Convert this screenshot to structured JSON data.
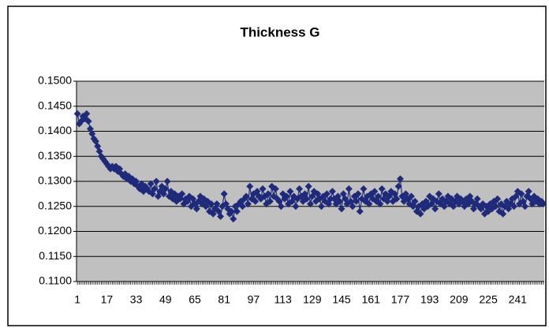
{
  "chart_data": {
    "type": "line",
    "title": "Thickness G",
    "x": [
      1,
      2,
      3,
      4,
      5,
      6,
      7,
      8,
      9,
      10,
      11,
      12,
      13,
      14,
      15,
      16,
      17,
      18,
      19,
      20,
      21,
      22,
      23,
      24,
      25,
      26,
      27,
      28,
      29,
      30,
      31,
      32,
      33,
      34,
      35,
      36,
      37,
      38,
      39,
      40,
      41,
      42,
      43,
      44,
      45,
      46,
      47,
      48,
      49,
      50,
      51,
      52,
      53,
      54,
      55,
      56,
      57,
      58,
      59,
      60,
      61,
      62,
      63,
      64,
      65,
      66,
      67,
      68,
      69,
      70,
      71,
      72,
      73,
      74,
      75,
      76,
      77,
      78,
      79,
      80,
      81,
      82,
      83,
      84,
      85,
      86,
      87,
      88,
      89,
      90,
      91,
      92,
      93,
      94,
      95,
      96,
      97,
      98,
      99,
      100,
      101,
      102,
      103,
      104,
      105,
      106,
      107,
      108,
      109,
      110,
      111,
      112,
      113,
      114,
      115,
      116,
      117,
      118,
      119,
      120,
      121,
      122,
      123,
      124,
      125,
      126,
      127,
      128,
      129,
      130,
      131,
      132,
      133,
      134,
      135,
      136,
      137,
      138,
      139,
      140,
      141,
      142,
      143,
      144,
      145,
      146,
      147,
      148,
      149,
      150,
      151,
      152,
      153,
      154,
      155,
      156,
      157,
      158,
      159,
      160,
      161,
      162,
      163,
      164,
      165,
      166,
      167,
      168,
      169,
      170,
      171,
      172,
      173,
      174,
      175,
      176,
      177,
      178,
      179,
      180,
      181,
      182,
      183,
      184,
      185,
      186,
      187,
      188,
      189,
      190,
      191,
      192,
      193,
      194,
      195,
      196,
      197,
      198,
      199,
      200,
      201,
      202,
      203,
      204,
      205,
      206,
      207,
      208,
      209,
      210,
      211,
      212,
      213,
      214,
      215,
      216,
      217,
      218,
      219,
      220,
      221,
      222,
      223,
      224,
      225,
      226,
      227,
      228,
      229,
      230,
      231,
      232,
      233,
      234,
      235,
      236,
      237,
      238,
      239,
      240,
      241,
      242,
      243,
      244,
      245,
      246,
      247,
      248,
      249,
      250,
      251,
      252,
      253,
      254,
      255
    ],
    "series": [
      {
        "color": "#1f2a7a",
        "values": [
          0.1435,
          0.1415,
          0.142,
          0.143,
          0.1425,
          0.1435,
          0.142,
          0.1405,
          0.1395,
          0.1385,
          0.138,
          0.137,
          0.136,
          0.135,
          0.1345,
          0.134,
          0.1335,
          0.133,
          0.1325,
          0.133,
          0.1325,
          0.133,
          0.132,
          0.1325,
          0.1315,
          0.131,
          0.1315,
          0.1305,
          0.131,
          0.13,
          0.1305,
          0.1295,
          0.13,
          0.129,
          0.1285,
          0.1295,
          0.128,
          0.129,
          0.1285,
          0.128,
          0.1295,
          0.1275,
          0.1285,
          0.13,
          0.127,
          0.128,
          0.129,
          0.1275,
          0.1285,
          0.13,
          0.127,
          0.128,
          0.1265,
          0.1275,
          0.126,
          0.127,
          0.1265,
          0.1275,
          0.1255,
          0.1265,
          0.126,
          0.127,
          0.125,
          0.1265,
          0.1255,
          0.1245,
          0.126,
          0.127,
          0.1255,
          0.1265,
          0.125,
          0.126,
          0.124,
          0.1255,
          0.1235,
          0.1245,
          0.1255,
          0.124,
          0.123,
          0.125,
          0.1275,
          0.1255,
          0.1245,
          0.1235,
          0.124,
          0.1225,
          0.125,
          0.124,
          0.1255,
          0.126,
          0.125,
          0.1265,
          0.127,
          0.1255,
          0.129,
          0.1265,
          0.1275,
          0.126,
          0.128,
          0.127,
          0.1265,
          0.1285,
          0.127,
          0.1255,
          0.1275,
          0.126,
          0.129,
          0.127,
          0.1285,
          0.1265,
          0.126,
          0.125,
          0.1275,
          0.1265,
          0.127,
          0.1255,
          0.128,
          0.126,
          0.127,
          0.125,
          0.1265,
          0.1285,
          0.127,
          0.126,
          0.1275,
          0.1265,
          0.129,
          0.1255,
          0.127,
          0.128,
          0.126,
          0.1275,
          0.1265,
          0.125,
          0.127,
          0.126,
          0.1275,
          0.1255,
          0.1265,
          0.128,
          0.1265,
          0.1255,
          0.127,
          0.126,
          0.1245,
          0.1275,
          0.1265,
          0.1255,
          0.1285,
          0.126,
          0.125,
          0.127,
          0.126,
          0.1275,
          0.124,
          0.1265,
          0.1285,
          0.126,
          0.127,
          0.1255,
          0.1275,
          0.1265,
          0.128,
          0.126,
          0.127,
          0.1255,
          0.1285,
          0.1265,
          0.1275,
          0.126,
          0.127,
          0.128,
          0.126,
          0.1275,
          0.1265,
          0.129,
          0.1305,
          0.127,
          0.126,
          0.1275,
          0.1265,
          0.1255,
          0.127,
          0.125,
          0.126,
          0.124,
          0.125,
          0.1235,
          0.1255,
          0.1245,
          0.126,
          0.125,
          0.127,
          0.1255,
          0.1265,
          0.1245,
          0.126,
          0.1275,
          0.1255,
          0.1265,
          0.125,
          0.126,
          0.127,
          0.1255,
          0.1265,
          0.125,
          0.126,
          0.127,
          0.1255,
          0.1265,
          0.126,
          0.125,
          0.1265,
          0.1255,
          0.127,
          0.126,
          0.1245,
          0.1255,
          0.1265,
          0.125,
          0.1245,
          0.1255,
          0.1235,
          0.125,
          0.124,
          0.1255,
          0.1245,
          0.126,
          0.125,
          0.1265,
          0.124,
          0.1255,
          0.1235,
          0.125,
          0.126,
          0.1245,
          0.1255,
          0.1265,
          0.125,
          0.127,
          0.128,
          0.1255,
          0.1275,
          0.126,
          0.125,
          0.127,
          0.128,
          0.1265,
          0.1255,
          0.127,
          0.126,
          0.1265,
          0.1255,
          0.126,
          0.1255
        ]
      }
    ],
    "xlim": [
      0.5,
      255.5
    ],
    "xticks": [
      1,
      17,
      33,
      49,
      65,
      81,
      97,
      113,
      129,
      145,
      161,
      177,
      193,
      209,
      225,
      241
    ],
    "ylim": [
      0.11,
      0.15
    ],
    "yticks": [
      {
        "value": 0.11,
        "label": "0.1100"
      },
      {
        "value": 0.115,
        "label": "0.1150"
      },
      {
        "value": 0.12,
        "label": "0.1200"
      },
      {
        "value": 0.125,
        "label": "0.1250"
      },
      {
        "value": 0.13,
        "label": "0.1300"
      },
      {
        "value": 0.135,
        "label": "0.1350"
      },
      {
        "value": 0.14,
        "label": "0.1400"
      },
      {
        "value": 0.145,
        "label": "0.1450"
      },
      {
        "value": 0.15,
        "label": "0.1500"
      }
    ],
    "grid": true
  }
}
